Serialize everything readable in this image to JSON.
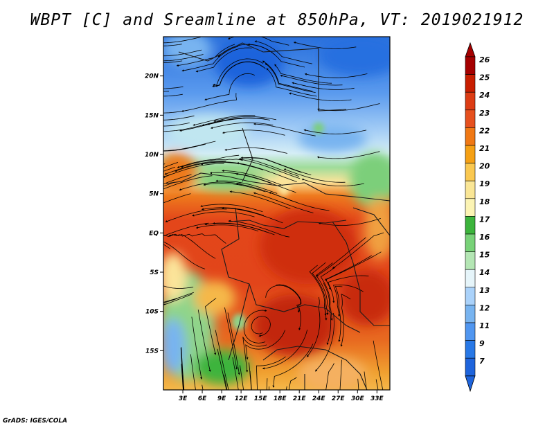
{
  "title": "WBPT [C] and Sreamline at 850hPa, VT: 2019021912",
  "footer": "GrADS: IGES/COLA",
  "map": {
    "lat_labels": [
      "20N",
      "15N",
      "10N",
      "5N",
      "EQ",
      "5S",
      "10S",
      "15S"
    ],
    "lat_values": [
      20,
      15,
      10,
      5,
      0,
      -5,
      -10,
      -15
    ],
    "lon_labels": [
      "3E",
      "6E",
      "9E",
      "12E",
      "15E",
      "18E",
      "21E",
      "24E",
      "27E",
      "30E",
      "33E"
    ],
    "lon_values": [
      3,
      6,
      9,
      12,
      15,
      18,
      21,
      24,
      27,
      30,
      33
    ],
    "lon_range": [
      0,
      35
    ],
    "lat_range": [
      -20,
      25
    ]
  },
  "colorbar": {
    "labels": [
      "26",
      "25",
      "24",
      "23",
      "22",
      "21",
      "20",
      "19",
      "18",
      "17",
      "16",
      "15",
      "14",
      "13",
      "12",
      "11",
      "9",
      "7"
    ],
    "colors": [
      "#a50000",
      "#c81e00",
      "#dc3c14",
      "#e6501e",
      "#f07814",
      "#f5a014",
      "#fac850",
      "#fae696",
      "#fcf4b4",
      "#3cb43c",
      "#78d278",
      "#b4e6b4",
      "#e6f5fa",
      "#aad2fa",
      "#78b4f0",
      "#5096f0",
      "#2878e6",
      "#1e64dc"
    ],
    "over_color": "#a50000",
    "under_color": "#1e64dc"
  }
}
